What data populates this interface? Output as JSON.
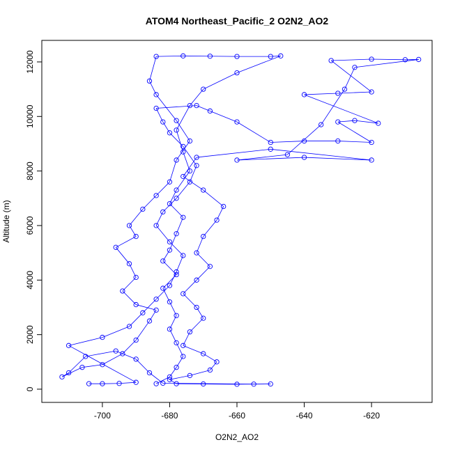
{
  "chart_data": {
    "type": "scatter",
    "title": "ATOM4 Northeast_Pacific_2 O2N2_AO2",
    "xlabel": "O2N2_AO2",
    "ylabel": "Altitude (m)",
    "xlim": [
      -718,
      -602
    ],
    "ylim": [
      -485,
      12790
    ],
    "xticks": [
      -700,
      -680,
      -660,
      -640,
      -620
    ],
    "yticks": [
      0,
      2000,
      4000,
      6000,
      8000,
      10000,
      12000
    ],
    "grid": false,
    "point_style": "open-circle-with-lines",
    "color": "#0000ff",
    "series": [
      {
        "name": "O2N2_AO2",
        "points": [
          [
            -704,
            200
          ],
          [
            -700,
            200
          ],
          [
            -695,
            210
          ],
          [
            -690,
            250
          ],
          [
            -710,
            1600
          ],
          [
            -700,
            1900
          ],
          [
            -692,
            2300
          ],
          [
            -688,
            2800
          ],
          [
            -684,
            3300
          ],
          [
            -680,
            3800
          ],
          [
            -678,
            4300
          ],
          [
            -676,
            4900
          ],
          [
            -680,
            5400
          ],
          [
            -684,
            6000
          ],
          [
            -682,
            6500
          ],
          [
            -678,
            7000
          ],
          [
            -674,
            7600
          ],
          [
            -672,
            8200
          ],
          [
            -676,
            8900
          ],
          [
            -680,
            9400
          ],
          [
            -682,
            9800
          ],
          [
            -684,
            10300
          ],
          [
            -672,
            10400
          ],
          [
            -668,
            10200
          ],
          [
            -660,
            9800
          ],
          [
            -650,
            9050
          ],
          [
            -640,
            9100
          ],
          [
            -630,
            9100
          ],
          [
            -620,
            9050
          ],
          [
            -630,
            9800
          ],
          [
            -625,
            9850
          ],
          [
            -618,
            9750
          ],
          [
            -640,
            10800
          ],
          [
            -630,
            10850
          ],
          [
            -620,
            10900
          ],
          [
            -632,
            12050
          ],
          [
            -620,
            12100
          ],
          [
            -610,
            12080
          ],
          [
            -606,
            12090
          ],
          [
            -625,
            11800
          ],
          [
            -628,
            11000
          ],
          [
            -635,
            9700
          ],
          [
            -645,
            8600
          ],
          [
            -660,
            8400
          ],
          [
            -640,
            8500
          ],
          [
            -620,
            8400
          ],
          [
            -650,
            8800
          ],
          [
            -672,
            8500
          ],
          [
            -676,
            7800
          ],
          [
            -670,
            7300
          ],
          [
            -664,
            6700
          ],
          [
            -666,
            6200
          ],
          [
            -670,
            5600
          ],
          [
            -672,
            5000
          ],
          [
            -668,
            4500
          ],
          [
            -672,
            4000
          ],
          [
            -676,
            3500
          ],
          [
            -672,
            3000
          ],
          [
            -670,
            2600
          ],
          [
            -674,
            2100
          ],
          [
            -676,
            1600
          ],
          [
            -670,
            1300
          ],
          [
            -666,
            1000
          ],
          [
            -668,
            700
          ],
          [
            -674,
            500
          ],
          [
            -680,
            350
          ],
          [
            -678,
            200
          ],
          [
            -670,
            190
          ],
          [
            -660,
            180
          ],
          [
            -650,
            190
          ],
          [
            -655,
            185
          ],
          [
            -682,
            220
          ],
          [
            -686,
            600
          ],
          [
            -690,
            1100
          ],
          [
            -696,
            1400
          ],
          [
            -705,
            1200
          ],
          [
            -710,
            600
          ],
          [
            -712,
            450
          ],
          [
            -706,
            800
          ],
          [
            -700,
            900
          ],
          [
            -694,
            1300
          ],
          [
            -690,
            1800
          ],
          [
            -686,
            2500
          ],
          [
            -684,
            2900
          ],
          [
            -690,
            3100
          ],
          [
            -694,
            3600
          ],
          [
            -690,
            4100
          ],
          [
            -692,
            4600
          ],
          [
            -696,
            5200
          ],
          [
            -690,
            5600
          ],
          [
            -692,
            6000
          ],
          [
            -688,
            6600
          ],
          [
            -684,
            7100
          ],
          [
            -680,
            7600
          ],
          [
            -678,
            8400
          ],
          [
            -674,
            9100
          ],
          [
            -678,
            9850
          ],
          [
            -684,
            10800
          ],
          [
            -686,
            11300
          ],
          [
            -684,
            12200
          ],
          [
            -676,
            12220
          ],
          [
            -668,
            12210
          ],
          [
            -660,
            12200
          ],
          [
            -650,
            12200
          ],
          [
            -647,
            12220
          ],
          [
            -660,
            11600
          ],
          [
            -670,
            11000
          ],
          [
            -674,
            10400
          ],
          [
            -678,
            9500
          ],
          [
            -676,
            8700
          ],
          [
            -674,
            8000
          ],
          [
            -678,
            7300
          ],
          [
            -680,
            6800
          ],
          [
            -676,
            6300
          ],
          [
            -678,
            5700
          ],
          [
            -680,
            5100
          ],
          [
            -682,
            4700
          ],
          [
            -678,
            4200
          ],
          [
            -682,
            3700
          ],
          [
            -680,
            3200
          ],
          [
            -678,
            2700
          ],
          [
            -680,
            2200
          ],
          [
            -678,
            1700
          ],
          [
            -676,
            1200
          ],
          [
            -678,
            800
          ],
          [
            -680,
            450
          ],
          [
            -684,
            200
          ]
        ]
      }
    ]
  }
}
